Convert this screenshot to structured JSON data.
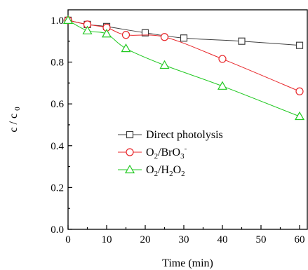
{
  "chart_data": {
    "type": "line",
    "title": "",
    "xlabel": "Time (min)",
    "ylabel": "c / c",
    "ylabel_subscript": "0",
    "xlim": [
      0,
      62
    ],
    "ylim": [
      0.0,
      1.05
    ],
    "xticks": [
      0,
      10,
      20,
      30,
      40,
      50,
      60
    ],
    "yticks": [
      0.0,
      0.2,
      0.4,
      0.6,
      0.8,
      1.0
    ],
    "xtick_labels": [
      "0",
      "10",
      "20",
      "30",
      "40",
      "50",
      "60"
    ],
    "ytick_labels": [
      "0.0",
      "0.2",
      "0.4",
      "0.6",
      "0.8",
      "1.0"
    ],
    "grid": false,
    "legend_position": "center-right",
    "series": [
      {
        "name": "Direct photolysis",
        "marker": "square",
        "color": "#404040",
        "x": [
          0,
          5,
          10,
          20,
          30,
          45,
          60
        ],
        "y": [
          1.0,
          0.98,
          0.97,
          0.94,
          0.915,
          0.9,
          0.88
        ]
      },
      {
        "name": "O2/BrO3-",
        "marker": "circle",
        "color": "#e8262a",
        "x": [
          0,
          5,
          10,
          15,
          25,
          40,
          60
        ],
        "y": [
          1.0,
          0.98,
          0.965,
          0.93,
          0.92,
          0.815,
          0.66
        ]
      },
      {
        "name": "O2/H2O2",
        "marker": "triangle",
        "color": "#22c922",
        "x": [
          0,
          5,
          10,
          15,
          25,
          40,
          60
        ],
        "y": [
          1.0,
          0.95,
          0.935,
          0.865,
          0.785,
          0.685,
          0.54
        ]
      }
    ],
    "legend": [
      {
        "base": "Direct photolysis",
        "parts": [
          {
            "t": "Direct photolysis",
            "s": "n"
          }
        ]
      },
      {
        "base": "O2/BrO3-",
        "parts": [
          {
            "t": "O",
            "s": "n"
          },
          {
            "t": "2",
            "s": "sub"
          },
          {
            "t": "/BrO",
            "s": "n"
          },
          {
            "t": "3",
            "s": "sub"
          },
          {
            "t": "-",
            "s": "sup"
          }
        ]
      },
      {
        "base": "O2/H2O2",
        "parts": [
          {
            "t": "O",
            "s": "n"
          },
          {
            "t": "2",
            "s": "sub"
          },
          {
            "t": "/H",
            "s": "n"
          },
          {
            "t": "2",
            "s": "sub"
          },
          {
            "t": "O",
            "s": "n"
          },
          {
            "t": "2",
            "s": "sub"
          }
        ]
      }
    ]
  }
}
